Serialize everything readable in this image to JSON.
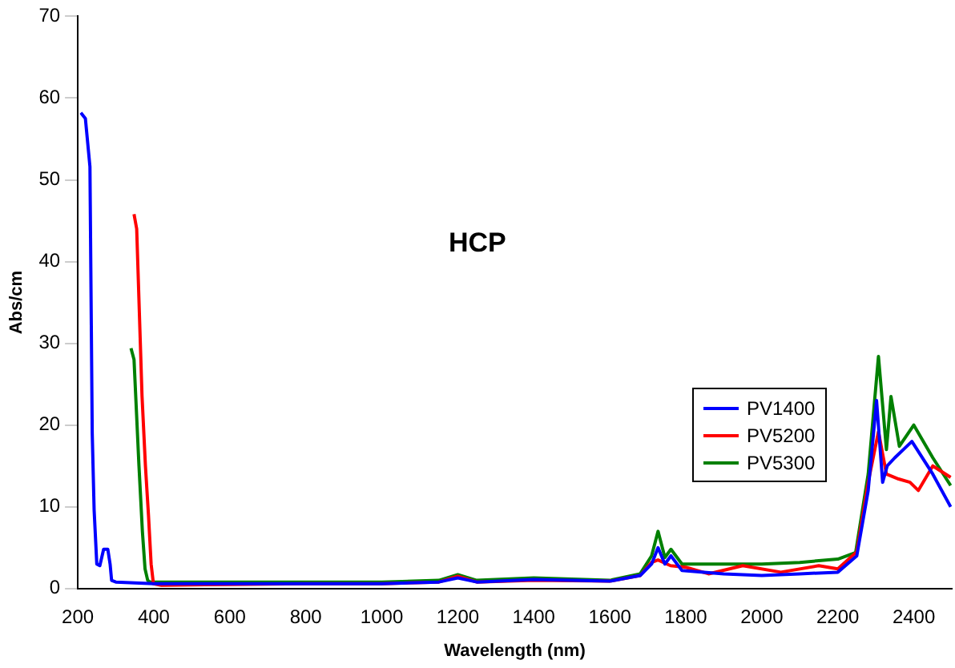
{
  "chart_data": {
    "type": "line",
    "title": "HCP",
    "xlabel": "Wavelength (nm)",
    "ylabel": "Abs/cm",
    "xlim": [
      200,
      2500
    ],
    "xticks": [
      200,
      400,
      600,
      800,
      1000,
      1200,
      1400,
      1600,
      1800,
      2000,
      2200,
      2400
    ],
    "ylim": [
      0,
      70
    ],
    "yticks": [
      0,
      10,
      20,
      30,
      40,
      50,
      60,
      70
    ],
    "grid": false,
    "legend": "right",
    "marker": "none",
    "line_style": "solid",
    "series": [
      {
        "name": "PV1400",
        "color": "#0000ff",
        "x": [
          208,
          220,
          232,
          238,
          243,
          250,
          258,
          268,
          279,
          285,
          289,
          300,
          350,
          400,
          600,
          800,
          1000,
          1150,
          1200,
          1250,
          1400,
          1600,
          1680,
          1710,
          1727,
          1745,
          1761,
          1790,
          1900,
          2000,
          2100,
          2200,
          2250,
          2280,
          2302,
          2318,
          2330,
          2350,
          2395,
          2450,
          2497
        ],
        "values": [
          58.2,
          57.5,
          51.6,
          19,
          9.6,
          3,
          2.8,
          4.8,
          4.8,
          3,
          1,
          0.8,
          0.7,
          0.6,
          0.6,
          0.6,
          0.6,
          0.8,
          1.3,
          0.8,
          1.1,
          0.9,
          1.6,
          3,
          5,
          3,
          4,
          2.2,
          1.8,
          1.6,
          1.8,
          2,
          4,
          12,
          23,
          13,
          15,
          16,
          18,
          14,
          10
        ]
      },
      {
        "name": "PV5200",
        "color": "#ff0000",
        "x": [
          348,
          355,
          369,
          378,
          386,
          393,
          399,
          420,
          600,
          800,
          1000,
          1150,
          1200,
          1250,
          1400,
          1600,
          1680,
          1710,
          1727,
          1760,
          1800,
          1860,
          1950,
          2050,
          2150,
          2200,
          2250,
          2280,
          2307,
          2328,
          2360,
          2390,
          2412,
          2450,
          2497
        ],
        "values": [
          45.8,
          44,
          23.6,
          15,
          9,
          3,
          0.6,
          0.4,
          0.5,
          0.6,
          0.6,
          0.8,
          1.5,
          0.8,
          1,
          0.9,
          1.6,
          3.2,
          3.5,
          2.8,
          2.6,
          1.8,
          2.8,
          2,
          2.8,
          2.4,
          4.5,
          13,
          19.2,
          14,
          13.4,
          13,
          12,
          15,
          13.6
        ]
      },
      {
        "name": "PV5300",
        "color": "#008000",
        "x": [
          340,
          348,
          361,
          370,
          377,
          384,
          390,
          420,
          600,
          800,
          1000,
          1150,
          1200,
          1250,
          1400,
          1600,
          1680,
          1710,
          1727,
          1745,
          1761,
          1790,
          1900,
          2000,
          2100,
          2200,
          2247,
          2280,
          2307,
          2328,
          2340,
          2362,
          2400,
          2450,
          2497
        ],
        "values": [
          29.4,
          28,
          15,
          7,
          2.4,
          1,
          0.8,
          0.8,
          0.8,
          0.8,
          0.8,
          1,
          1.7,
          1,
          1.3,
          1,
          1.8,
          4,
          7,
          3.8,
          4.8,
          3,
          3,
          3,
          3.2,
          3.6,
          4.4,
          14,
          28.4,
          17,
          23.5,
          17.4,
          20,
          16,
          12.6
        ]
      }
    ]
  }
}
